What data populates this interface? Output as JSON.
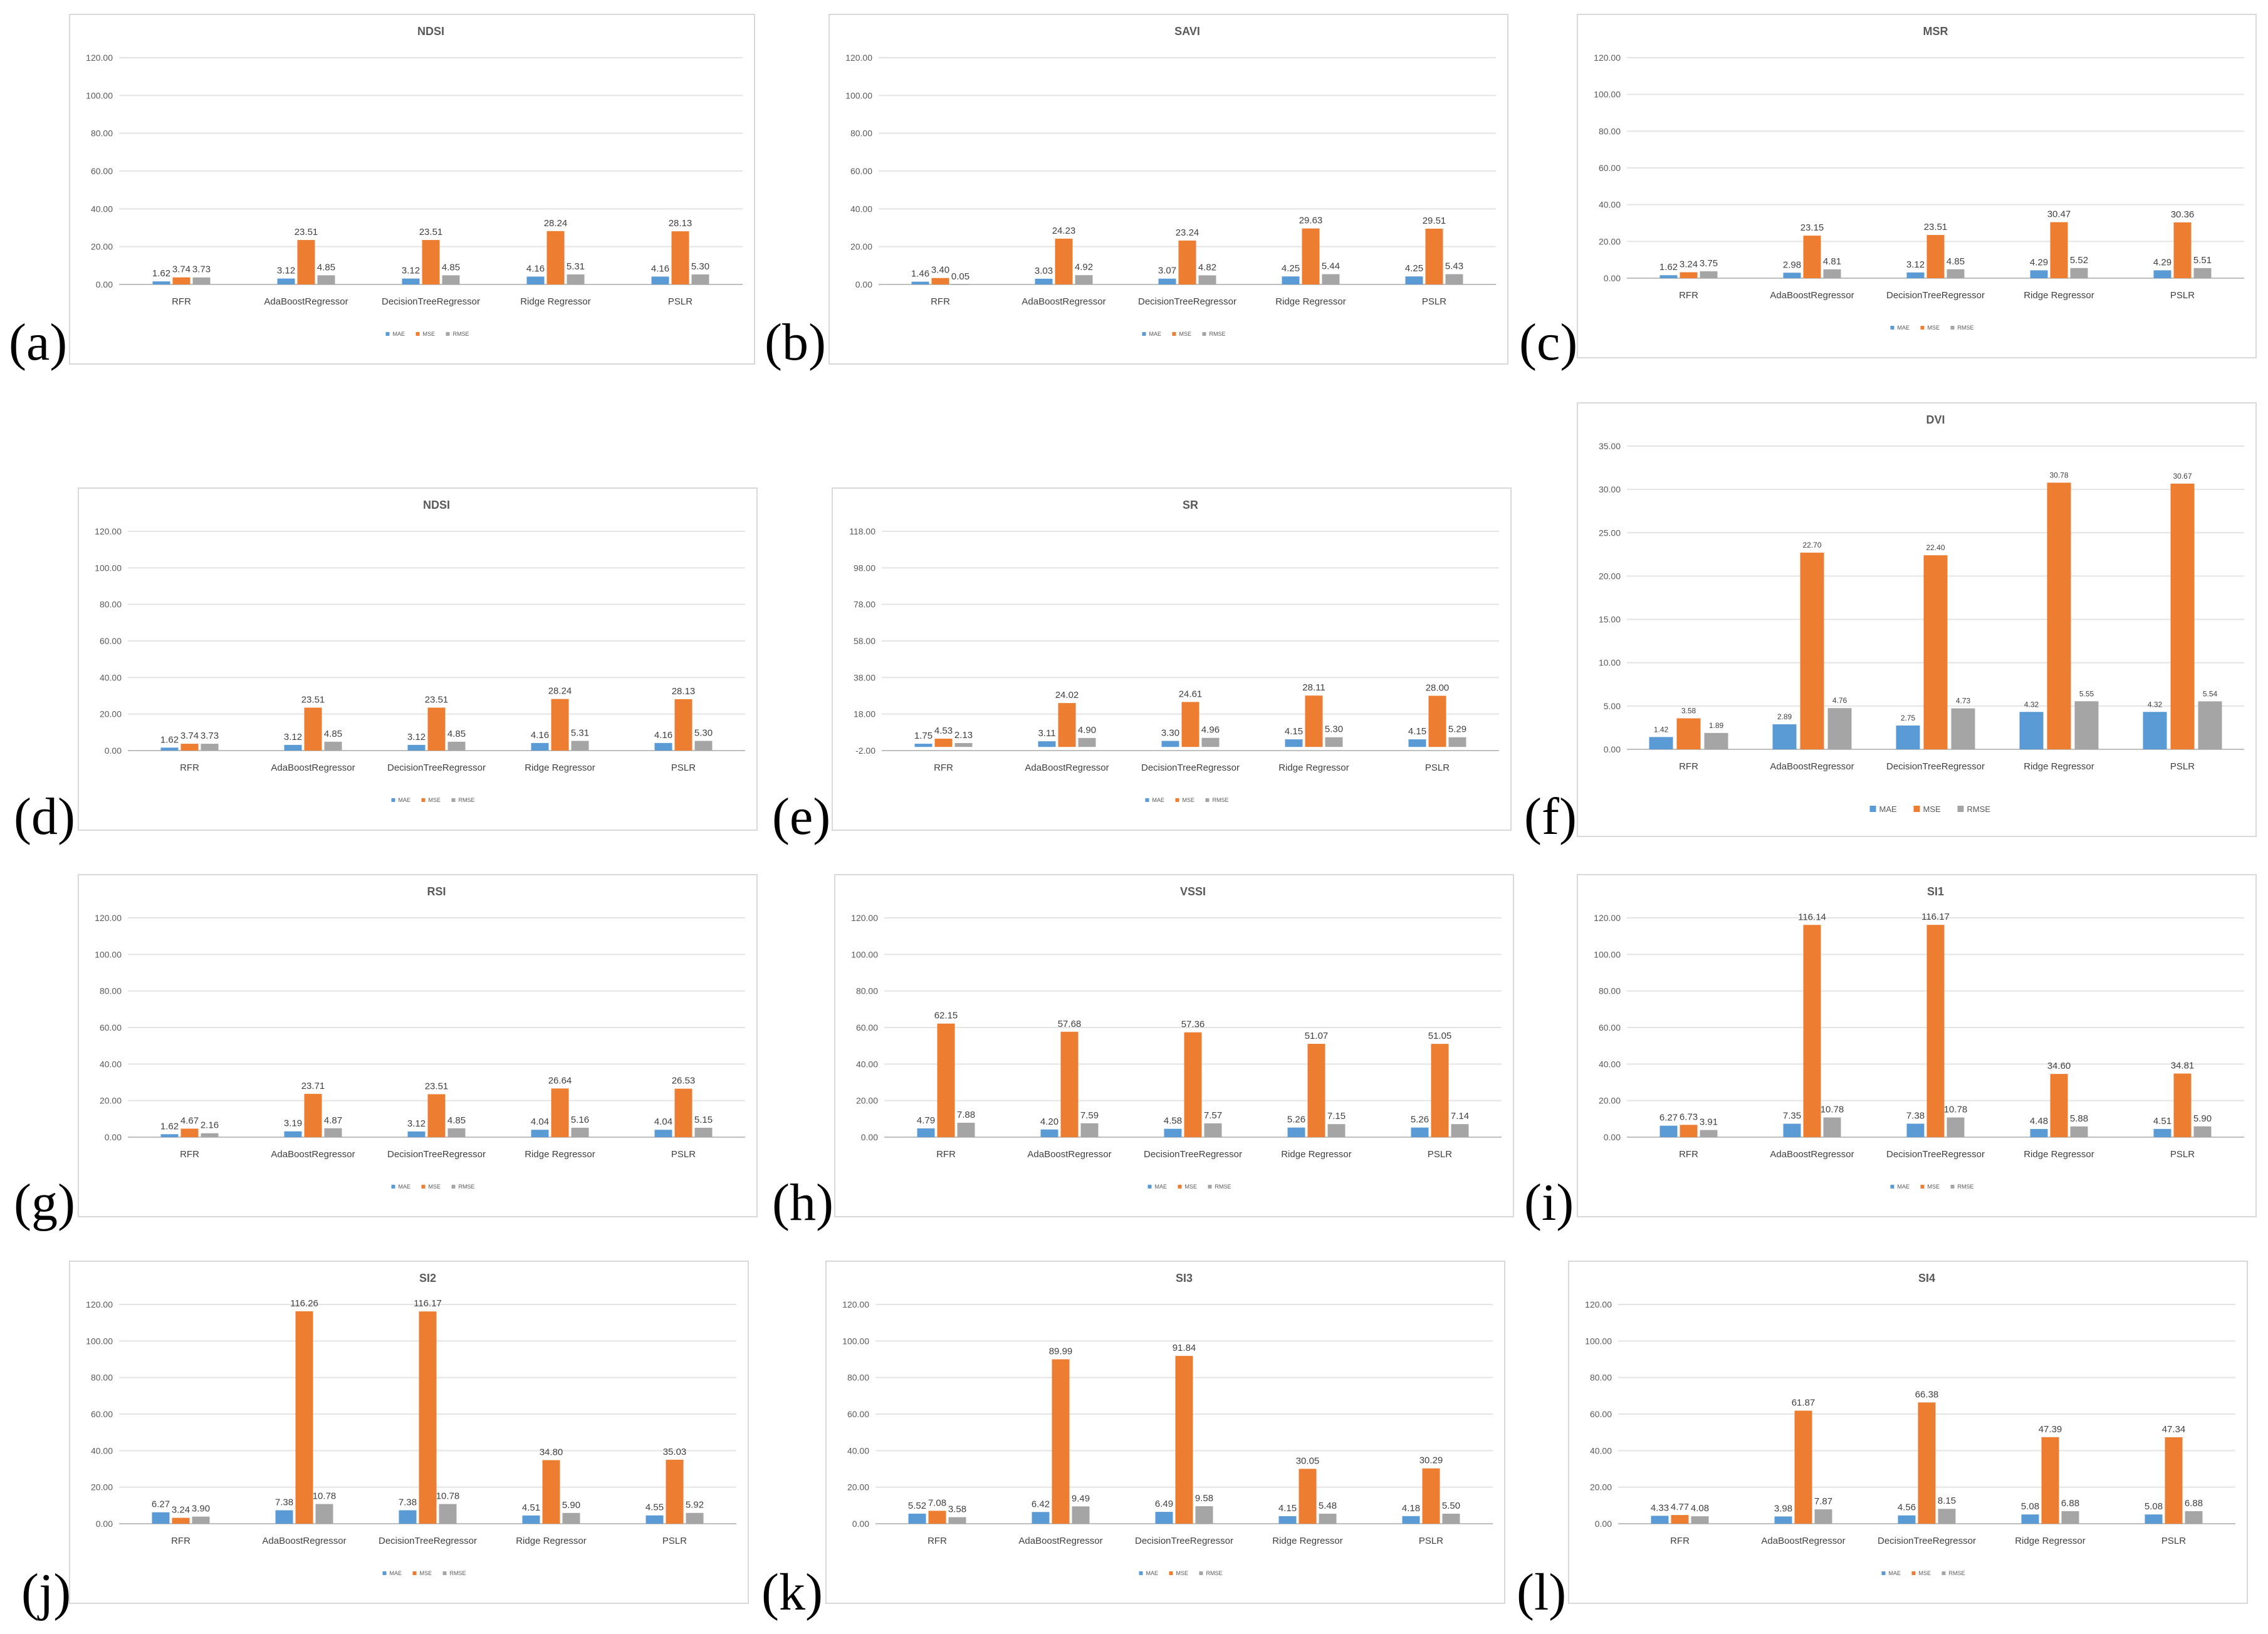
{
  "colors": {
    "MAE": "#5b9bd5",
    "MSE": "#ed7d31",
    "RMSE": "#a5a5a5"
  },
  "chart_data": [
    {
      "label": "(a)",
      "title": "NDSI",
      "type": "bar",
      "categories": [
        "RFR",
        "AdaBoostRegressor",
        "DecisionTreeRegressor",
        "Ridge Regressor",
        "PSLR"
      ],
      "ylim": [
        0,
        120
      ],
      "ticks": [
        "0.00",
        "20.00",
        "40.00",
        "60.00",
        "80.00",
        "100.00",
        "120.00"
      ],
      "series": [
        {
          "name": "MAE",
          "values": [
            1.62,
            3.12,
            3.12,
            4.16,
            4.16
          ]
        },
        {
          "name": "MSE",
          "values": [
            3.74,
            23.51,
            23.51,
            28.24,
            28.13
          ]
        },
        {
          "name": "RMSE",
          "values": [
            3.73,
            4.85,
            4.85,
            5.31,
            5.3
          ]
        }
      ]
    },
    {
      "label": "(b)",
      "title": "SAVI",
      "type": "bar",
      "categories": [
        "RFR",
        "AdaBoostRegressor",
        "DecisionTreeRegressor",
        "Ridge Regressor",
        "PSLR"
      ],
      "ylim": [
        0,
        120
      ],
      "ticks": [
        "0.00",
        "20.00",
        "40.00",
        "60.00",
        "80.00",
        "100.00",
        "120.00"
      ],
      "series": [
        {
          "name": "MAE",
          "values": [
            1.46,
            3.03,
            3.07,
            4.25,
            4.25
          ]
        },
        {
          "name": "MSE",
          "values": [
            3.4,
            24.23,
            23.24,
            29.63,
            29.51
          ]
        },
        {
          "name": "RMSE",
          "values": [
            0.05,
            4.92,
            4.82,
            5.44,
            5.43
          ]
        }
      ]
    },
    {
      "label": "(c)",
      "title": "MSR",
      "type": "bar",
      "categories": [
        "RFR",
        "AdaBoostRegressor",
        "DecisionTreeRegressor",
        "Ridge Regressor",
        "PSLR"
      ],
      "ylim": [
        0,
        120
      ],
      "ticks": [
        "0.00",
        "20.00",
        "40.00",
        "60.00",
        "80.00",
        "100.00",
        "120.00"
      ],
      "series": [
        {
          "name": "MAE",
          "values": [
            1.62,
            2.98,
            3.12,
            4.29,
            4.29
          ]
        },
        {
          "name": "MSE",
          "values": [
            3.24,
            23.15,
            23.51,
            30.47,
            30.36
          ]
        },
        {
          "name": "RMSE",
          "values": [
            3.75,
            4.81,
            4.85,
            5.52,
            5.51
          ]
        }
      ]
    },
    {
      "label": "(d)",
      "title": "NDSI",
      "type": "bar",
      "categories": [
        "RFR",
        "AdaBoostRegressor",
        "DecisionTreeRegressor",
        "Ridge Regressor",
        "PSLR"
      ],
      "ylim": [
        0,
        120
      ],
      "ticks": [
        "0.00",
        "20.00",
        "40.00",
        "60.00",
        "80.00",
        "100.00",
        "120.00"
      ],
      "series": [
        {
          "name": "MAE",
          "values": [
            1.62,
            3.12,
            3.12,
            4.16,
            4.16
          ]
        },
        {
          "name": "MSE",
          "values": [
            3.74,
            23.51,
            23.51,
            28.24,
            28.13
          ]
        },
        {
          "name": "RMSE",
          "values": [
            3.73,
            4.85,
            4.85,
            5.31,
            5.3
          ]
        }
      ]
    },
    {
      "label": "(e)",
      "title": "SR",
      "type": "bar",
      "categories": [
        "RFR",
        "AdaBoostRegressor",
        "DecisionTreeRegressor",
        "Ridge Regressor",
        "PSLR"
      ],
      "ylim": [
        -2,
        118
      ],
      "ticks": [
        "-2.00",
        "18.00",
        "38.00",
        "58.00",
        "78.00",
        "98.00",
        "118.00"
      ],
      "series": [
        {
          "name": "MAE",
          "values": [
            1.75,
            3.11,
            3.3,
            4.15,
            4.15
          ]
        },
        {
          "name": "MSE",
          "values": [
            4.53,
            24.02,
            24.61,
            28.11,
            28.0
          ]
        },
        {
          "name": "RMSE",
          "values": [
            2.13,
            4.9,
            4.96,
            5.3,
            5.29
          ]
        }
      ]
    },
    {
      "label": "(f)",
      "title": "DVI",
      "type": "bar",
      "categories": [
        "RFR",
        "AdaBoostRegressor",
        "DecisionTreeRegressor",
        "Ridge Regressor",
        "PSLR"
      ],
      "ylim": [
        0,
        35
      ],
      "ticks": [
        "0.00",
        "5.00",
        "10.00",
        "15.00",
        "20.00",
        "25.00",
        "30.00",
        "35.00"
      ],
      "series": [
        {
          "name": "MAE",
          "values": [
            1.42,
            2.89,
            2.75,
            4.32,
            4.32
          ]
        },
        {
          "name": "MSE",
          "values": [
            3.58,
            22.7,
            22.4,
            30.78,
            30.67
          ]
        },
        {
          "name": "RMSE",
          "values": [
            1.89,
            4.76,
            4.73,
            5.55,
            5.54
          ]
        }
      ]
    },
    {
      "label": "(g)",
      "title": "RSI",
      "type": "bar",
      "categories": [
        "RFR",
        "AdaBoostRegressor",
        "DecisionTreeRegressor",
        "Ridge Regressor",
        "PSLR"
      ],
      "ylim": [
        0,
        120
      ],
      "ticks": [
        "0.00",
        "20.00",
        "40.00",
        "60.00",
        "80.00",
        "100.00",
        "120.00"
      ],
      "series": [
        {
          "name": "MAE",
          "values": [
            1.62,
            3.19,
            3.12,
            4.04,
            4.04
          ]
        },
        {
          "name": "MSE",
          "values": [
            4.67,
            23.71,
            23.51,
            26.64,
            26.53
          ]
        },
        {
          "name": "RMSE",
          "values": [
            2.16,
            4.87,
            4.85,
            5.16,
            5.15
          ]
        }
      ]
    },
    {
      "label": "(h)",
      "title": "VSSI",
      "type": "bar",
      "categories": [
        "RFR",
        "AdaBoostRegressor",
        "DecisionTreeRegressor",
        "Ridge Regressor",
        "PSLR"
      ],
      "ylim": [
        0,
        120
      ],
      "ticks": [
        "0.00",
        "20.00",
        "40.00",
        "60.00",
        "80.00",
        "100.00",
        "120.00"
      ],
      "series": [
        {
          "name": "MAE",
          "values": [
            4.79,
            4.2,
            4.58,
            5.26,
            5.26
          ]
        },
        {
          "name": "MSE",
          "values": [
            62.15,
            57.68,
            57.36,
            51.07,
            51.05
          ]
        },
        {
          "name": "RMSE",
          "values": [
            7.88,
            7.59,
            7.57,
            7.15,
            7.14
          ]
        }
      ]
    },
    {
      "label": "(i)",
      "title": "SI1",
      "type": "bar",
      "categories": [
        "RFR",
        "AdaBoostRegressor",
        "DecisionTreeRegressor",
        "Ridge Regressor",
        "PSLR"
      ],
      "ylim": [
        0,
        120
      ],
      "ticks": [
        "0.00",
        "20.00",
        "40.00",
        "60.00",
        "80.00",
        "100.00",
        "120.00"
      ],
      "series": [
        {
          "name": "MAE",
          "values": [
            6.27,
            7.35,
            7.38,
            4.48,
            4.51
          ]
        },
        {
          "name": "MSE",
          "values": [
            6.73,
            116.14,
            116.17,
            34.6,
            34.81
          ]
        },
        {
          "name": "RMSE",
          "values": [
            3.91,
            10.78,
            10.78,
            5.88,
            5.9
          ]
        }
      ]
    },
    {
      "label": "(j)",
      "title": "SI2",
      "type": "bar",
      "categories": [
        "RFR",
        "AdaBoostRegressor",
        "DecisionTreeRegressor",
        "Ridge Regressor",
        "PSLR"
      ],
      "ylim": [
        0,
        120
      ],
      "ticks": [
        "0.00",
        "20.00",
        "40.00",
        "60.00",
        "80.00",
        "100.00",
        "120.00"
      ],
      "series": [
        {
          "name": "MAE",
          "values": [
            6.27,
            7.38,
            7.38,
            4.51,
            4.55
          ]
        },
        {
          "name": "MSE",
          "values": [
            3.24,
            116.26,
            116.17,
            34.8,
            35.03
          ]
        },
        {
          "name": "RMSE",
          "values": [
            3.9,
            10.78,
            10.78,
            5.9,
            5.92
          ]
        }
      ]
    },
    {
      "label": "(k)",
      "title": "SI3",
      "type": "bar",
      "categories": [
        "RFR",
        "AdaBoostRegressor",
        "DecisionTreeRegressor",
        "Ridge Regressor",
        "PSLR"
      ],
      "ylim": [
        0,
        120
      ],
      "ticks": [
        "0.00",
        "20.00",
        "40.00",
        "60.00",
        "80.00",
        "100.00",
        "120.00"
      ],
      "series": [
        {
          "name": "MAE",
          "values": [
            5.52,
            6.42,
            6.49,
            4.15,
            4.18
          ]
        },
        {
          "name": "MSE",
          "values": [
            7.08,
            89.99,
            91.84,
            30.05,
            30.29
          ]
        },
        {
          "name": "RMSE",
          "values": [
            3.58,
            9.49,
            9.58,
            5.48,
            5.5
          ]
        }
      ]
    },
    {
      "label": "(l)",
      "title": "SI4",
      "type": "bar",
      "categories": [
        "RFR",
        "AdaBoostRegressor",
        "DecisionTreeRegressor",
        "Ridge Regressor",
        "PSLR"
      ],
      "ylim": [
        0,
        120
      ],
      "ticks": [
        "0.00",
        "20.00",
        "40.00",
        "60.00",
        "80.00",
        "100.00",
        "120.00"
      ],
      "series": [
        {
          "name": "MAE",
          "values": [
            4.33,
            3.98,
            4.56,
            5.08,
            5.08
          ]
        },
        {
          "name": "MSE",
          "values": [
            4.77,
            61.87,
            66.38,
            47.39,
            47.34
          ]
        },
        {
          "name": "RMSE",
          "values": [
            4.08,
            7.87,
            8.15,
            6.88,
            6.88
          ]
        }
      ]
    }
  ]
}
